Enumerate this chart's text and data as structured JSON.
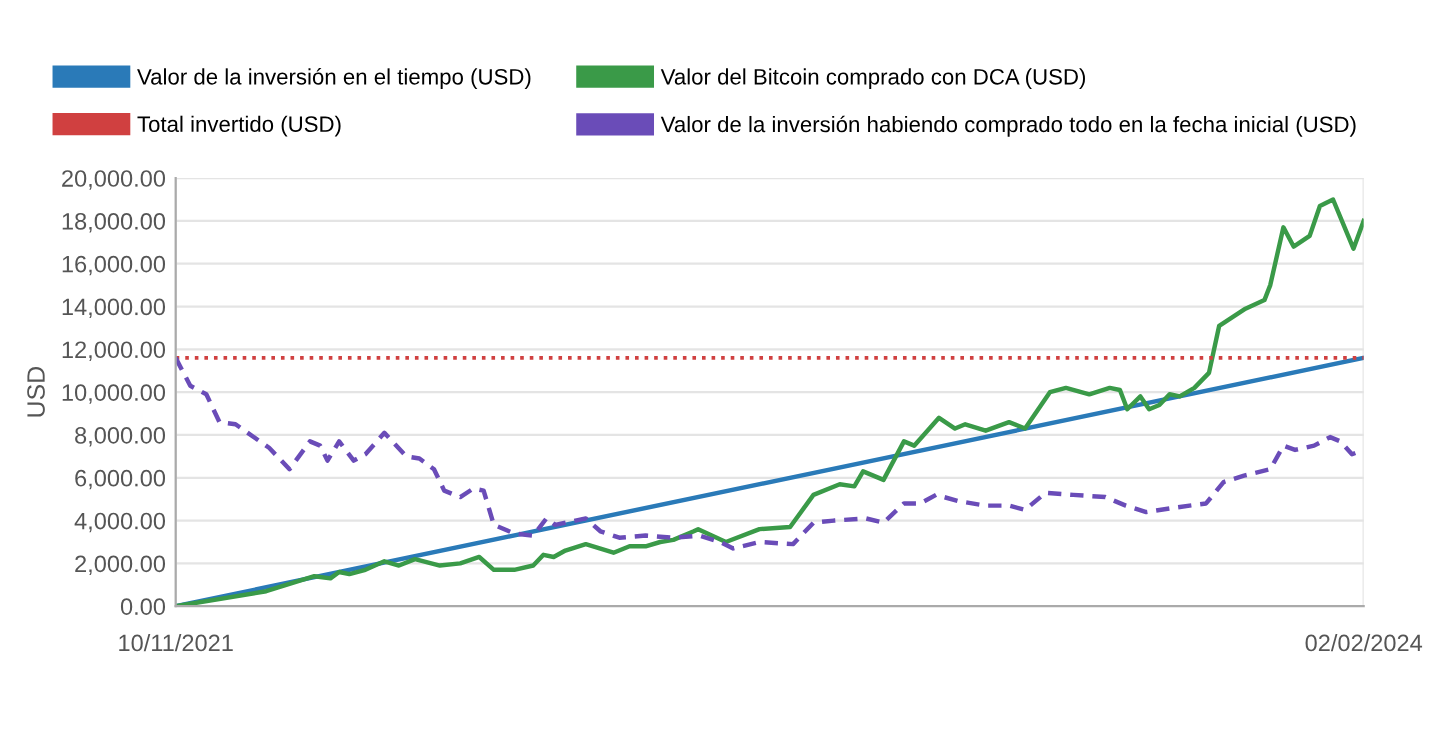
{
  "chart_data": {
    "type": "line",
    "ylabel": "USD",
    "legend": "top",
    "grid": true,
    "xlim": [
      "2021-11-10",
      "2024-02-02"
    ],
    "xticks": [
      {
        "value": "2021-11-10",
        "label": "10/11/2021"
      },
      {
        "value": "2024-02-02",
        "label": "02/02/2024"
      }
    ],
    "ylim": [
      0,
      20000
    ],
    "yticks": [
      {
        "value": 0,
        "label": "0.00"
      },
      {
        "value": 2000,
        "label": "2,000.00"
      },
      {
        "value": 4000,
        "label": "4,000.00"
      },
      {
        "value": 6000,
        "label": "6,000.00"
      },
      {
        "value": 8000,
        "label": "8,000.00"
      },
      {
        "value": 10000,
        "label": "10,000.00"
      },
      {
        "value": 12000,
        "label": "12,000.00"
      },
      {
        "value": 14000,
        "label": "14,000.00"
      },
      {
        "value": 16000,
        "label": "16,000.00"
      },
      {
        "value": 18000,
        "label": "18,000.00"
      },
      {
        "value": 20000,
        "label": "20,000.00"
      }
    ],
    "series": [
      {
        "name": "Valor de la inversión en el tiempo (USD)",
        "color": "#2a7ab8",
        "line_style": "solid",
        "x": [
          "2021-11-10",
          "2024-02-02"
        ],
        "values": [
          0,
          11600
        ]
      },
      {
        "name": "Valor del Bitcoin comprado con DCA (USD)",
        "color": "#3a9a48",
        "line_style": "solid",
        "x": [
          "2021-11-10",
          "2022-01-11",
          "2022-02-13",
          "2022-02-24",
          "2022-03-02",
          "2022-03-09",
          "2022-03-20",
          "2022-04-02",
          "2022-04-12",
          "2022-04-23",
          "2022-05-10",
          "2022-05-24",
          "2022-06-06",
          "2022-06-16",
          "2022-06-30",
          "2022-07-13",
          "2022-07-20",
          "2022-07-27",
          "2022-08-04",
          "2022-08-18",
          "2022-09-06",
          "2022-09-17",
          "2022-09-28",
          "2022-10-08",
          "2022-10-17",
          "2022-10-31",
          "2022-11-03",
          "2022-11-22",
          "2022-12-15",
          "2023-01-05",
          "2023-01-21",
          "2023-02-08",
          "2023-02-18",
          "2023-02-24",
          "2023-03-10",
          "2023-03-24",
          "2023-03-31",
          "2023-04-17",
          "2023-04-28",
          "2023-05-05",
          "2023-05-19",
          "2023-06-04",
          "2023-06-15",
          "2023-07-02",
          "2023-07-13",
          "2023-07-29",
          "2023-08-12",
          "2023-08-19",
          "2023-08-24",
          "2023-09-02",
          "2023-09-08",
          "2023-09-15",
          "2023-09-22",
          "2023-09-29",
          "2023-10-09",
          "2023-10-19",
          "2023-10-26",
          "2023-11-13",
          "2023-11-26",
          "2023-11-30",
          "2023-12-09",
          "2023-12-16",
          "2023-12-27",
          "2024-01-03",
          "2024-01-12",
          "2024-01-26",
          "2024-02-02"
        ],
        "values": [
          0,
          700,
          1400,
          1300,
          1600,
          1500,
          1700,
          2100,
          1900,
          2200,
          1900,
          2000,
          2300,
          1700,
          1700,
          1900,
          2400,
          2300,
          2600,
          2900,
          2500,
          2800,
          2800,
          3000,
          3100,
          3500,
          3600,
          3000,
          3600,
          3700,
          5200,
          5700,
          5600,
          6300,
          5900,
          7700,
          7500,
          8800,
          8300,
          8500,
          8200,
          8600,
          8300,
          10000,
          10200,
          9900,
          10200,
          10100,
          9200,
          9800,
          9200,
          9400,
          9900,
          9800,
          10200,
          10900,
          13100,
          13900,
          14300,
          15000,
          17700,
          16800,
          17300,
          18700,
          19000,
          16700,
          18000
        ]
      },
      {
        "name": "Total invertido (USD)",
        "color": "#d04040",
        "line_style": "dotted",
        "x": [
          "2021-11-10",
          "2024-02-02"
        ],
        "values": [
          11600,
          11600
        ]
      },
      {
        "name": "Valor de la inversión habiendo comprado todo en la fecha inicial (USD)",
        "color": "#6a4cb8",
        "line_style": "dashed",
        "x": [
          "2021-11-10",
          "2021-11-20",
          "2021-12-01",
          "2021-12-10",
          "2021-12-21",
          "2022-01-13",
          "2022-01-27",
          "2022-02-10",
          "2022-02-17",
          "2022-02-22",
          "2022-03-02",
          "2022-03-12",
          "2022-03-20",
          "2022-04-02",
          "2022-04-17",
          "2022-04-26",
          "2022-05-06",
          "2022-05-13",
          "2022-05-24",
          "2022-06-02",
          "2022-06-09",
          "2022-06-16",
          "2022-06-30",
          "2022-07-13",
          "2022-07-22",
          "2022-07-28",
          "2022-08-18",
          "2022-08-28",
          "2022-09-10",
          "2022-09-28",
          "2022-10-17",
          "2022-11-04",
          "2022-11-18",
          "2022-11-27",
          "2022-12-15",
          "2023-01-07",
          "2023-01-21",
          "2023-02-04",
          "2023-02-26",
          "2023-03-10",
          "2023-03-24",
          "2023-04-04",
          "2023-04-15",
          "2023-05-01",
          "2023-05-19",
          "2023-06-04",
          "2023-06-15",
          "2023-06-29",
          "2023-07-18",
          "2023-08-09",
          "2023-08-23",
          "2023-09-06",
          "2023-09-25",
          "2023-10-17",
          "2023-10-29",
          "2023-11-12",
          "2023-11-30",
          "2023-12-09",
          "2023-12-17",
          "2023-12-30",
          "2024-01-10",
          "2024-01-17",
          "2024-01-25",
          "2024-02-02"
        ],
        "values": [
          11600,
          10300,
          9900,
          8600,
          8500,
          7400,
          6400,
          7700,
          7500,
          6800,
          7700,
          6800,
          7100,
          8100,
          7000,
          6900,
          6400,
          5400,
          5100,
          5500,
          5400,
          3800,
          3400,
          3300,
          4100,
          3800,
          4100,
          3500,
          3200,
          3300,
          3200,
          3300,
          3000,
          2700,
          3000,
          2900,
          3900,
          4000,
          4100,
          3900,
          4800,
          4800,
          5200,
          4900,
          4700,
          4700,
          4500,
          5300,
          5200,
          5100,
          4700,
          4400,
          4600,
          4800,
          5800,
          6100,
          6400,
          7500,
          7300,
          7500,
          7900,
          7700,
          7100,
          7300
        ]
      }
    ]
  }
}
